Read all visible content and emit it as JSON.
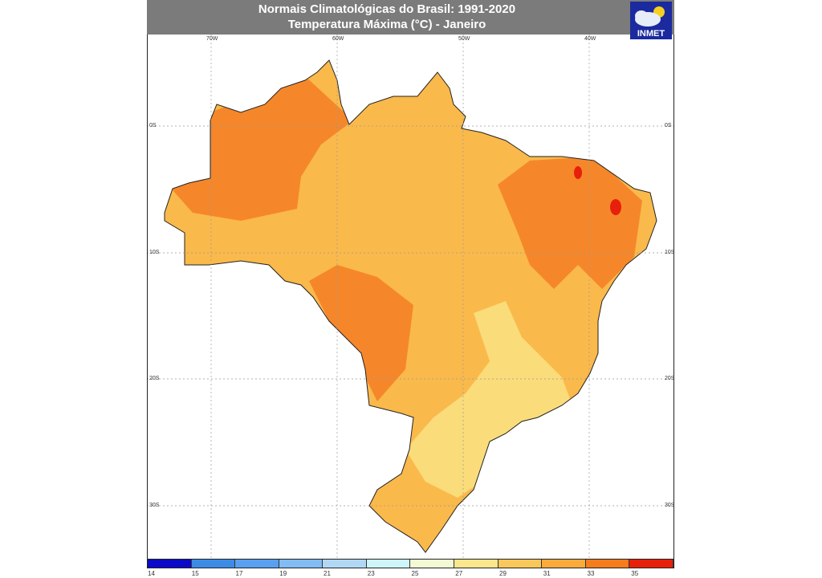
{
  "header": {
    "title_line1": "Normais Climatológicas do Brasil: 1991-2020",
    "title_line2": "Temperatura Máxima (°C) - Janeiro",
    "logo_text": "INMET"
  },
  "axes": {
    "lon_labels": [
      "70W",
      "60W",
      "50W",
      "40W"
    ],
    "lat_labels": [
      "0S",
      "10S",
      "20S",
      "30S"
    ]
  },
  "legend": {
    "unit": "°C",
    "ticks": [
      "14",
      "15",
      "17",
      "19",
      "21",
      "23",
      "25",
      "27",
      "29",
      "31",
      "33",
      "35"
    ],
    "colors": [
      "#0a0ac8",
      "#3c8ce6",
      "#5aa0f0",
      "#82bcf5",
      "#b0d8f5",
      "#cdf5fa",
      "#f2fad4",
      "#fae68c",
      "#fac85a",
      "#faab3c",
      "#f57d1e",
      "#e6200a"
    ]
  },
  "map_colors": {
    "base_29_31": "#fab94b",
    "warm_31_33": "#f5872a",
    "mild_27_29": "#fadc7a",
    "hot_33_35": "#e6200a"
  }
}
